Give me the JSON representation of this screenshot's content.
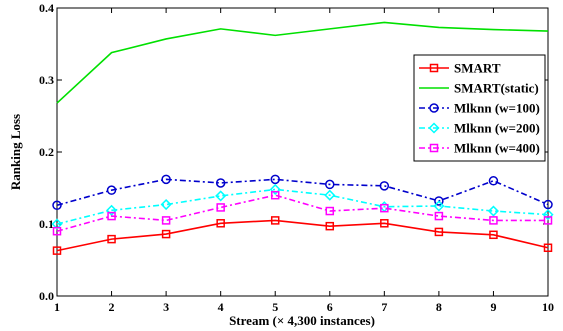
{
  "chart_data": {
    "type": "line",
    "xlabel": "Stream (× 4,300 instances)",
    "ylabel": "Ranking Loss",
    "x": [
      1,
      2,
      3,
      4,
      5,
      6,
      7,
      8,
      9,
      10
    ],
    "xlim": [
      1,
      10
    ],
    "ylim": [
      0,
      0.4
    ],
    "xticks": [
      "1",
      "2",
      "3",
      "4",
      "5",
      "6",
      "7",
      "8",
      "9",
      "10"
    ],
    "yticks": [
      "0.0",
      "0.1",
      "0.2",
      "0.3",
      "0.4"
    ],
    "grid": false,
    "legend_position": "right",
    "series": [
      {
        "name": "SMART",
        "color": "#ff0000",
        "marker": "square",
        "dash": "solid",
        "values": [
          0.063,
          0.079,
          0.086,
          0.101,
          0.105,
          0.097,
          0.101,
          0.089,
          0.085,
          0.067
        ]
      },
      {
        "name": "SMART(static)",
        "color": "#00e000",
        "marker": "none",
        "dash": "solid",
        "values": [
          0.268,
          0.338,
          0.357,
          0.371,
          0.362,
          0.371,
          0.38,
          0.373,
          0.37,
          0.368
        ]
      },
      {
        "name": "Mlknn (w=100)",
        "color": "#0000cc",
        "marker": "circle",
        "dash": "dashdot",
        "values": [
          0.126,
          0.147,
          0.162,
          0.157,
          0.162,
          0.155,
          0.153,
          0.132,
          0.16,
          0.127
        ]
      },
      {
        "name": "Mlknn (w=200)",
        "color": "#00ffff",
        "marker": "diamond",
        "dash": "dashdot",
        "values": [
          0.1,
          0.119,
          0.127,
          0.139,
          0.148,
          0.14,
          0.124,
          0.125,
          0.118,
          0.113
        ]
      },
      {
        "name": "Mlknn (w=400)",
        "color": "#ff00ff",
        "marker": "square-open",
        "dash": "dashdot",
        "values": [
          0.09,
          0.111,
          0.105,
          0.123,
          0.14,
          0.118,
          0.122,
          0.111,
          0.105,
          0.105
        ]
      }
    ]
  }
}
